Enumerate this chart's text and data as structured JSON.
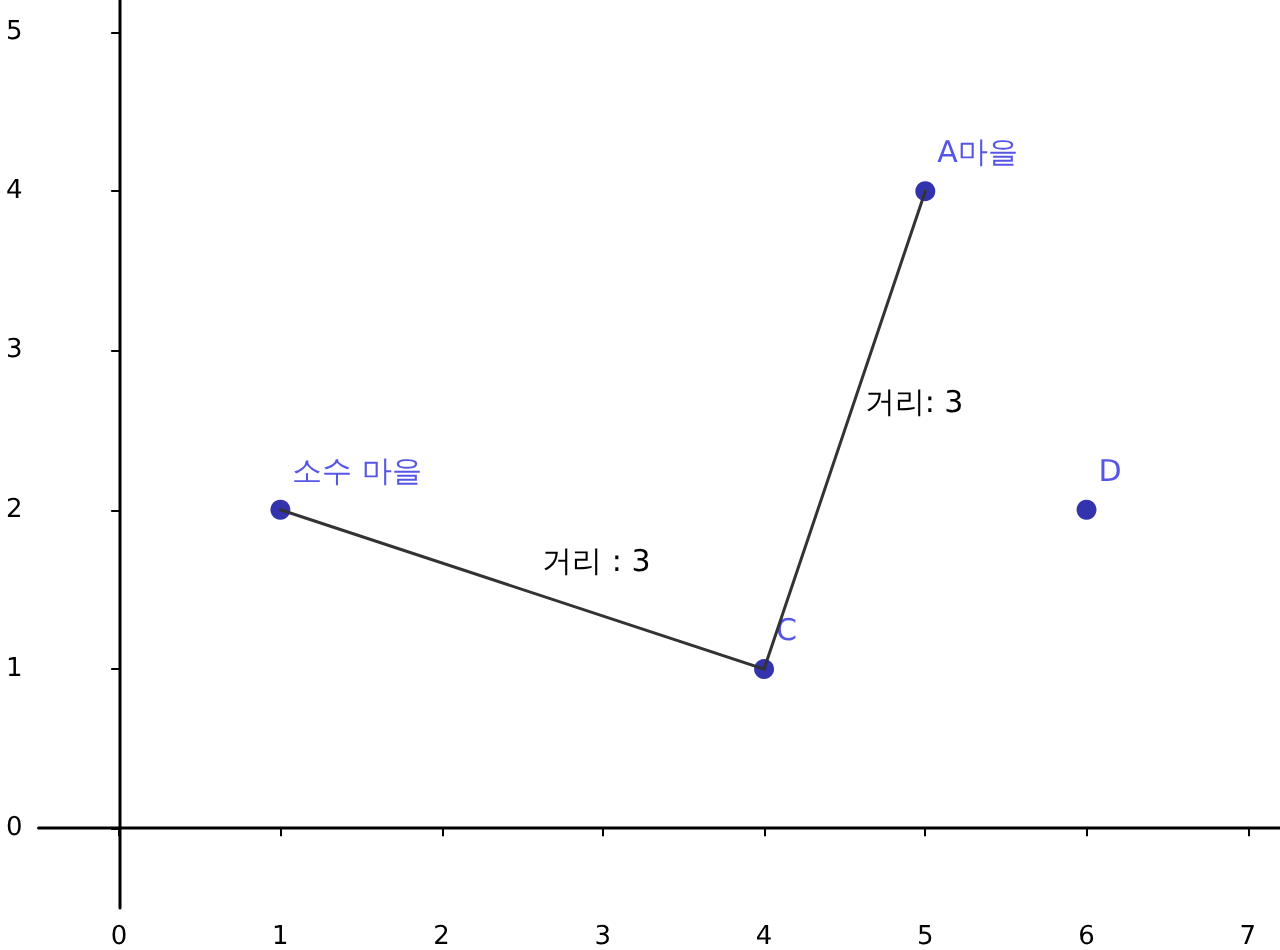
{
  "chart_data": {
    "type": "scatter",
    "xlim": [
      -0.5,
      7.2
    ],
    "ylim": [
      -0.5,
      5.2
    ],
    "xticks": [
      0,
      1,
      2,
      3,
      4,
      5,
      6,
      7
    ],
    "yticks": [
      0,
      1,
      2,
      3,
      4,
      5
    ],
    "series": [
      {
        "type": "line",
        "marker": "none",
        "color": "#333333",
        "x": [
          1,
          4
        ],
        "values": [
          2,
          1
        ]
      },
      {
        "type": "line",
        "marker": "none",
        "color": "#333333",
        "x": [
          4,
          5
        ],
        "values": [
          1,
          4
        ]
      },
      {
        "name": "소수 마을",
        "marker": "circle",
        "color": "#000099",
        "x": [
          1
        ],
        "values": [
          2
        ]
      },
      {
        "name": "C",
        "marker": "circle",
        "color": "#000099",
        "x": [
          4
        ],
        "values": [
          1
        ]
      },
      {
        "name": "A마을",
        "marker": "circle",
        "color": "#000099",
        "x": [
          5
        ],
        "values": [
          4
        ]
      },
      {
        "name": "D",
        "marker": "circle",
        "color": "#000099",
        "x": [
          6
        ],
        "values": [
          2
        ]
      }
    ],
    "annotations": [
      {
        "text": "거리 : 3",
        "x": 2.5,
        "y": 1.5
      },
      {
        "text": "거리: 3",
        "x": 4.5,
        "y": 2.5
      }
    ]
  }
}
